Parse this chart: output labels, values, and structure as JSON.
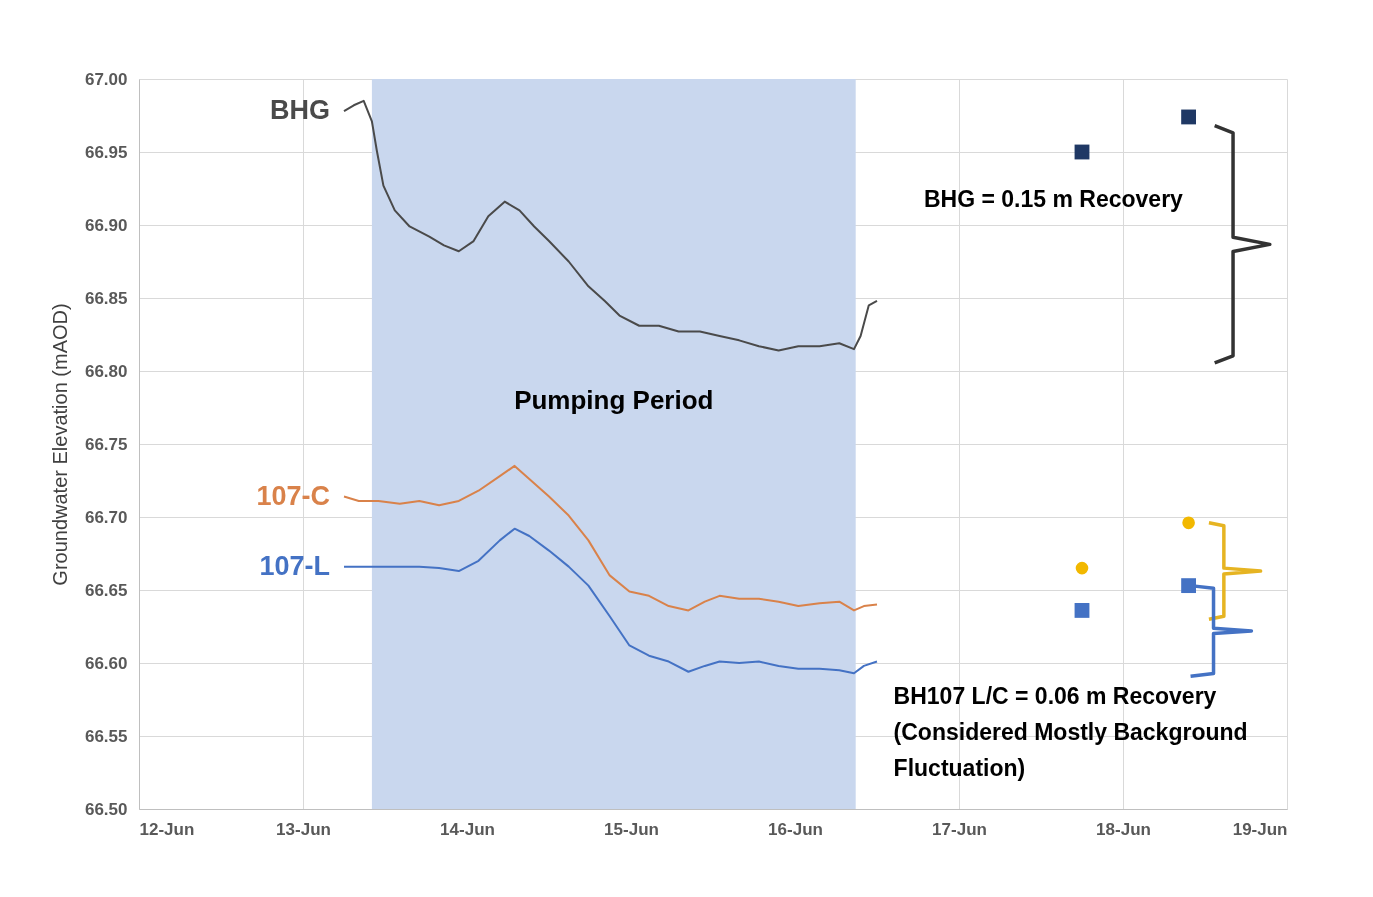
{
  "chart_data": {
    "type": "line",
    "ylabel": "Groundwater Elevation (mAOD)",
    "xlim": [
      "--06-12",
      "--06-19"
    ],
    "xticks": [
      {
        "value": "--06-12",
        "label": "12-Jun"
      },
      {
        "value": "--06-13",
        "label": "13-Jun"
      },
      {
        "value": "--06-14",
        "label": "14-Jun"
      },
      {
        "value": "--06-15",
        "label": "15-Jun"
      },
      {
        "value": "--06-16",
        "label": "16-Jun"
      },
      {
        "value": "--06-17",
        "label": "17-Jun"
      },
      {
        "value": "--06-18",
        "label": "18-Jun"
      },
      {
        "value": "--06-19",
        "label": "19-Jun"
      }
    ],
    "ylim": [
      66.5,
      67.0
    ],
    "yticks": [
      {
        "value": 66.5,
        "label": "66.50"
      },
      {
        "value": 66.55,
        "label": "66.55"
      },
      {
        "value": 66.6,
        "label": "66.60"
      },
      {
        "value": 66.65,
        "label": "66.65"
      },
      {
        "value": 66.7,
        "label": "66.70"
      },
      {
        "value": 66.75,
        "label": "66.75"
      },
      {
        "value": 66.8,
        "label": "66.80"
      },
      {
        "value": 66.85,
        "label": "66.85"
      },
      {
        "value": 66.9,
        "label": "66.90"
      },
      {
        "value": 66.95,
        "label": "66.95"
      },
      {
        "value": 67.0,
        "label": "67.00"
      }
    ],
    "grid": true,
    "line_style": "solid",
    "bands": [
      {
        "axis": "x",
        "from": "--06-13T10:05",
        "to": "--06-16T08:53",
        "label": "Pumping Period",
        "color": "#c9d7ee"
      }
    ],
    "series": [
      {
        "name": "BHG",
        "color": "#4a4a4a",
        "x": [
          "--06-13T06:00",
          "--06-13T07:26",
          "--06-13T08:53",
          "--06-13T10:05",
          "--06-13T10:48",
          "--06-13T11:46",
          "--06-13T13:26",
          "--06-13T15:36",
          "--06-13T18:29",
          "--06-13T20:38",
          "--06-13T22:48",
          "--06-14T00:58",
          "--06-14T03:07",
          "--06-14T05:31",
          "--06-14T07:41",
          "--06-14T09:50",
          "--06-14T12:00",
          "--06-14T14:53",
          "--06-14T17:46",
          "--06-14T20:10",
          "--06-14T22:19",
          "--06-15T01:12",
          "--06-15T04:05",
          "--06-15T06:58",
          "--06-15T10:05",
          "--06-15T12:58",
          "--06-15T15:50",
          "--06-15T18:43",
          "--06-15T21:36",
          "--06-16T00:29",
          "--06-16T03:36",
          "--06-16T06:29",
          "--06-16T08:38",
          "--06-16T09:36",
          "--06-16T10:48",
          "--06-16T12:00"
        ],
        "values": [
          66.978,
          66.982,
          66.985,
          66.971,
          66.951,
          66.927,
          66.91,
          66.899,
          66.892,
          66.886,
          66.882,
          66.889,
          66.906,
          66.916,
          66.91,
          66.899,
          66.889,
          66.875,
          66.858,
          66.848,
          66.838,
          66.831,
          66.831,
          66.827,
          66.827,
          66.824,
          66.821,
          66.817,
          66.814,
          66.817,
          66.817,
          66.819,
          66.815,
          66.824,
          66.845,
          66.848
        ]
      },
      {
        "name": "107-C",
        "color": "#d9824a",
        "x": [
          "--06-13T06:00",
          "--06-13T08:10",
          "--06-13T11:02",
          "--06-13T14:10",
          "--06-13T17:02",
          "--06-13T19:55",
          "--06-13T22:48",
          "--06-14T01:41",
          "--06-14T04:48",
          "--06-14T06:58",
          "--06-14T09:07",
          "--06-14T12:00",
          "--06-14T14:53",
          "--06-14T17:46",
          "--06-14T20:53",
          "--06-14T23:46",
          "--06-15T02:38",
          "--06-15T05:31",
          "--06-15T08:24",
          "--06-15T10:48",
          "--06-15T12:58",
          "--06-15T15:50",
          "--06-15T18:43",
          "--06-15T21:36",
          "--06-16T00:29",
          "--06-16T03:36",
          "--06-16T06:29",
          "--06-16T08:38",
          "--06-16T10:05",
          "--06-16T12:00"
        ],
        "values": [
          66.714,
          66.711,
          66.711,
          66.709,
          66.711,
          66.708,
          66.711,
          66.718,
          66.728,
          66.735,
          66.726,
          66.714,
          66.701,
          66.684,
          66.66,
          66.649,
          66.646,
          66.639,
          66.636,
          66.642,
          66.646,
          66.644,
          66.644,
          66.642,
          66.639,
          66.641,
          66.642,
          66.636,
          66.639,
          66.64
        ]
      },
      {
        "name": "107-L",
        "color": "#4472c4",
        "x": [
          "--06-13T06:00",
          "--06-13T08:10",
          "--06-13T11:02",
          "--06-13T14:10",
          "--06-13T17:02",
          "--06-13T19:55",
          "--06-13T22:48",
          "--06-14T01:41",
          "--06-14T04:48",
          "--06-14T06:58",
          "--06-14T09:07",
          "--06-14T12:00",
          "--06-14T14:53",
          "--06-14T17:46",
          "--06-14T20:53",
          "--06-14T23:46",
          "--06-15T02:38",
          "--06-15T05:31",
          "--06-15T08:24",
          "--06-15T10:48",
          "--06-15T12:58",
          "--06-15T15:50",
          "--06-15T18:43",
          "--06-15T21:36",
          "--06-16T00:29",
          "--06-16T03:36",
          "--06-16T06:29",
          "--06-16T08:38",
          "--06-16T10:05",
          "--06-16T12:00"
        ],
        "values": [
          66.666,
          66.666,
          66.666,
          66.666,
          66.666,
          66.665,
          66.663,
          66.67,
          66.684,
          66.692,
          66.687,
          66.677,
          66.666,
          66.653,
          66.632,
          66.612,
          66.605,
          66.601,
          66.594,
          66.598,
          66.601,
          66.6,
          66.601,
          66.598,
          66.596,
          66.596,
          66.595,
          66.593,
          66.598,
          66.601
        ]
      },
      {
        "type": "scatter",
        "marker": "square",
        "color": "#1f3864",
        "x": [
          "--06-17T18:00",
          "--06-18T09:36"
        ],
        "values": [
          66.95,
          66.974
        ]
      },
      {
        "type": "scatter",
        "marker": "circle",
        "color": "#f2b800",
        "x": [
          "--06-17T18:00",
          "--06-18T09:36"
        ],
        "values": [
          66.665,
          66.696
        ]
      },
      {
        "type": "scatter",
        "marker": "square",
        "color": "#4472c4",
        "x": [
          "--06-17T18:00",
          "--06-18T09:36"
        ],
        "values": [
          66.636,
          66.653
        ]
      }
    ],
    "annotations": [
      "BHG = 0.15 m Recovery",
      {
        "text": "BH107 L/C = 0.06 m Recovery\n(Considered Mostly Background\nFluctuation)",
        "x": "--06-18T09:36",
        "y": 66.653
      }
    ]
  }
}
